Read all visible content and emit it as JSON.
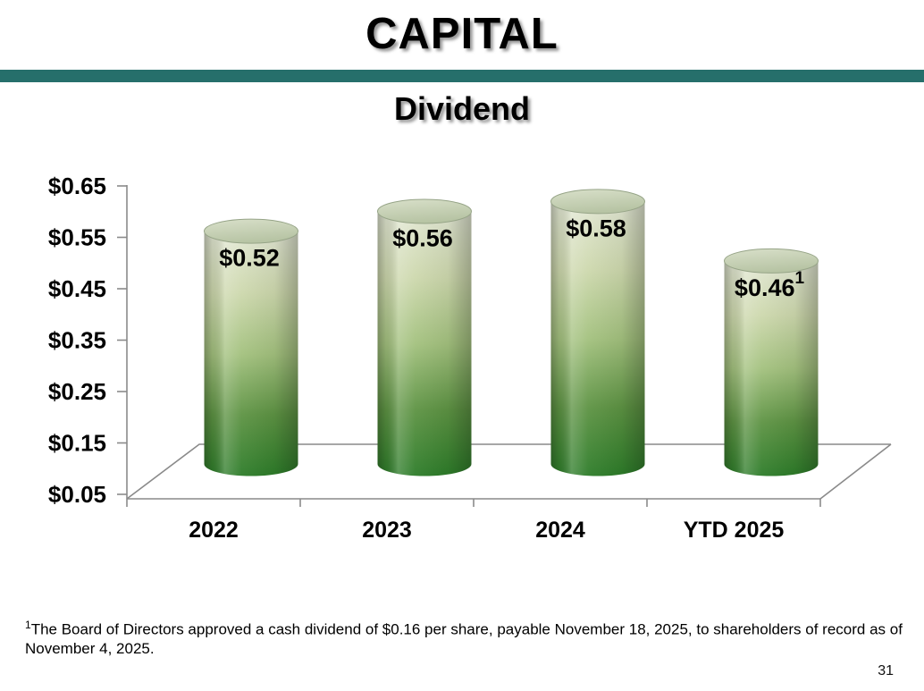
{
  "slide": {
    "title": "CAPITAL",
    "subtitle": "Dividend",
    "page_number": "31",
    "accent_color": "#266F6B"
  },
  "footnote": {
    "superscript": "1",
    "text": "The Board of Directors approved a cash dividend of $0.16 per share, payable November 18, 2025, to shareholders of record as of November 4, 2025."
  },
  "chart_data": {
    "type": "bar",
    "subtype": "3d-cylinder",
    "title": "Dividend",
    "categories": [
      "2022",
      "2023",
      "2024",
      "YTD 2025"
    ],
    "values": [
      0.52,
      0.56,
      0.58,
      0.46
    ],
    "data_labels": [
      "$0.52",
      "$0.56",
      "$0.58",
      "$0.46"
    ],
    "data_label_superscripts": [
      "",
      "",
      "",
      "1"
    ],
    "y_ticks": [
      {
        "label": "$0.65",
        "value": 0.65
      },
      {
        "label": "$0.55",
        "value": 0.55
      },
      {
        "label": "$0.45",
        "value": 0.45
      },
      {
        "label": "$0.35",
        "value": 0.35
      },
      {
        "label": "$0.25",
        "value": 0.25
      },
      {
        "label": "$0.15",
        "value": 0.15
      },
      {
        "label": "$0.05",
        "value": 0.05
      }
    ],
    "ylim": [
      0.05,
      0.65
    ],
    "xlabel": "",
    "ylabel": "",
    "grid": false,
    "legend": "none",
    "style": {
      "axis_color": "#8a8a8a",
      "label_color": "#000000",
      "cap_fill_top": "#d9e0ca",
      "cap_fill_bottom": "#b7c4a4",
      "cap_stroke": "#96a487",
      "body_gradient": [
        "#e2e7d3",
        "#cdd8ad",
        "#a3c17e",
        "#5d9343",
        "#2d7c29"
      ],
      "body_gradient_offsets": [
        0,
        0.25,
        0.5,
        0.75,
        1
      ]
    }
  }
}
